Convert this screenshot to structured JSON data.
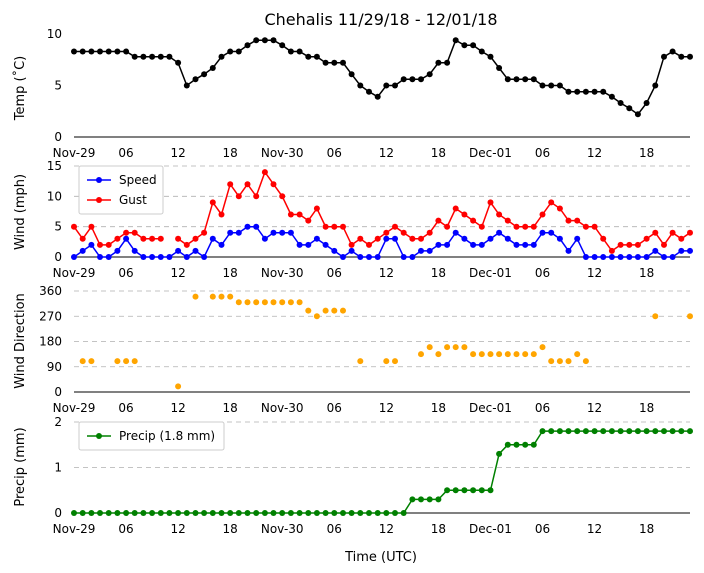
{
  "chart_data": {
    "type": "line",
    "title": "Chehalis 11/29/18 - 12/01/18",
    "xlabel": "Time (UTC)",
    "x_range_hours": [
      0,
      71
    ],
    "x_ticks": [
      {
        "hour": 0,
        "label": "Nov-29"
      },
      {
        "hour": 6,
        "label": "06"
      },
      {
        "hour": 12,
        "label": "12"
      },
      {
        "hour": 18,
        "label": "18"
      },
      {
        "hour": 24,
        "label": "Nov-30"
      },
      {
        "hour": 30,
        "label": "06"
      },
      {
        "hour": 36,
        "label": "12"
      },
      {
        "hour": 42,
        "label": "18"
      },
      {
        "hour": 48,
        "label": "Dec-01"
      },
      {
        "hour": 54,
        "label": "06"
      },
      {
        "hour": 60,
        "label": "12"
      },
      {
        "hour": 66,
        "label": "18"
      }
    ],
    "panels": [
      {
        "id": "temp",
        "ylabel": "Temp (˚C)",
        "ylim": [
          0,
          10
        ],
        "yticks": [
          0,
          5,
          10
        ],
        "grid": false,
        "series": [
          {
            "name": "Temperature",
            "color": "#000000",
            "line": true,
            "values": [
              8.3,
              8.3,
              8.3,
              8.3,
              8.3,
              8.3,
              8.3,
              7.8,
              7.8,
              7.8,
              7.8,
              7.8,
              7.2,
              5.0,
              5.6,
              6.1,
              6.7,
              7.8,
              8.3,
              8.3,
              8.9,
              9.4,
              9.4,
              9.4,
              8.9,
              8.3,
              8.3,
              7.8,
              7.8,
              7.2,
              7.2,
              7.2,
              6.1,
              5.0,
              4.4,
              3.9,
              5.0,
              5.0,
              5.6,
              5.6,
              5.6,
              6.1,
              7.2,
              7.2,
              9.4,
              8.9,
              8.9,
              8.3,
              7.8,
              6.7,
              5.6,
              5.6,
              5.6,
              5.6,
              5.0,
              5.0,
              5.0,
              4.4,
              4.4,
              4.4,
              4.4,
              4.4,
              3.9,
              3.3,
              2.8,
              2.2,
              3.3,
              5.0,
              7.8,
              8.3,
              7.8,
              7.8
            ]
          }
        ]
      },
      {
        "id": "wind",
        "ylabel": "Wind (mph)",
        "ylim": [
          0,
          15
        ],
        "yticks": [
          0,
          5,
          10,
          15
        ],
        "grid": true,
        "legend_position": "upper-left",
        "series": [
          {
            "name": "Speed",
            "color": "#0000ff",
            "line": true,
            "values": [
              0,
              1,
              2,
              0,
              0,
              1,
              3,
              1,
              0,
              0,
              0,
              0,
              1,
              0,
              1,
              0,
              3,
              2,
              4,
              4,
              5,
              5,
              3,
              4,
              4,
              4,
              2,
              2,
              3,
              2,
              1,
              0,
              1,
              0,
              0,
              0,
              3,
              3,
              0,
              0,
              1,
              1,
              2,
              2,
              4,
              3,
              2,
              2,
              3,
              4,
              3,
              2,
              2,
              2,
              4,
              4,
              3,
              1,
              3,
              0,
              0,
              0,
              0,
              0,
              0,
              0,
              0,
              1,
              0,
              0,
              1,
              1
            ]
          },
          {
            "name": "Gust",
            "color": "#ff0000",
            "line": true,
            "values": [
              5,
              3,
              5,
              2,
              2,
              3,
              4,
              4,
              3,
              3,
              3,
              null,
              3,
              2,
              3,
              4,
              9,
              7,
              12,
              10,
              12,
              10,
              14,
              12,
              10,
              7,
              7,
              6,
              8,
              5,
              5,
              5,
              2,
              3,
              2,
              3,
              4,
              5,
              4,
              3,
              3,
              4,
              6,
              5,
              8,
              7,
              6,
              5,
              9,
              7,
              6,
              5,
              5,
              5,
              7,
              9,
              8,
              6,
              6,
              5,
              5,
              3,
              1,
              2,
              2,
              2,
              3,
              4,
              2,
              4,
              3,
              4
            ]
          }
        ]
      },
      {
        "id": "dir",
        "ylabel": "Wind Direction",
        "ylim": [
          0,
          360
        ],
        "yticks": [
          0,
          90,
          180,
          270,
          360
        ],
        "grid": true,
        "series": [
          {
            "name": "Direction",
            "color": "#ffa500",
            "line": false,
            "values": [
              null,
              110,
              110,
              null,
              null,
              110,
              110,
              110,
              null,
              null,
              null,
              null,
              20,
              null,
              340,
              null,
              340,
              340,
              340,
              320,
              320,
              320,
              320,
              320,
              320,
              320,
              320,
              290,
              270,
              290,
              290,
              290,
              null,
              110,
              null,
              null,
              110,
              110,
              null,
              null,
              135,
              160,
              135,
              160,
              160,
              160,
              135,
              135,
              135,
              135,
              135,
              135,
              135,
              135,
              160,
              110,
              110,
              110,
              135,
              110,
              null,
              null,
              null,
              null,
              null,
              null,
              null,
              270,
              null,
              null,
              null,
              270
            ]
          }
        ]
      },
      {
        "id": "precip",
        "ylabel": "Precip (mm)",
        "ylim": [
          0,
          2
        ],
        "yticks": [
          0,
          1,
          2
        ],
        "grid": true,
        "legend_position": "upper-left",
        "series": [
          {
            "name": "Precip (1.8 mm)",
            "color": "#008000",
            "line": true,
            "values": [
              0,
              0,
              0,
              0,
              0,
              0,
              0,
              0,
              0,
              0,
              0,
              0,
              0,
              0,
              0,
              0,
              0,
              0,
              0,
              0,
              0,
              0,
              0,
              0,
              0,
              0,
              0,
              0,
              0,
              0,
              0,
              0,
              0,
              0,
              0,
              0,
              0,
              0,
              0,
              0.3,
              0.3,
              0.3,
              0.3,
              0.5,
              0.5,
              0.5,
              0.5,
              0.5,
              0.5,
              1.3,
              1.5,
              1.5,
              1.5,
              1.5,
              1.8,
              1.8,
              1.8,
              1.8,
              1.8,
              1.8,
              1.8,
              1.8,
              1.8,
              1.8,
              1.8,
              1.8,
              1.8,
              1.8,
              1.8,
              1.8,
              1.8,
              1.8
            ]
          }
        ]
      }
    ]
  }
}
